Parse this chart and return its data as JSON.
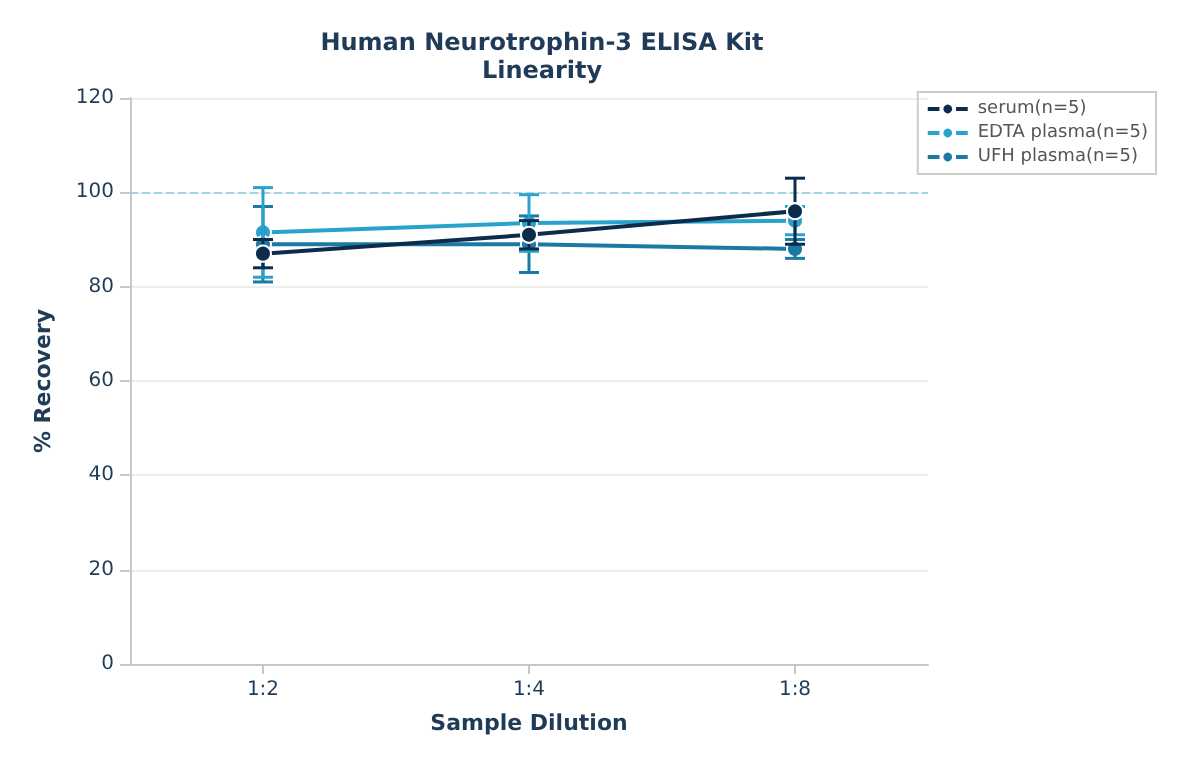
{
  "chart_data": {
    "type": "line",
    "title": "Human Neurotrophin-3 ELISA Kit",
    "subtitle": "Linearity",
    "xlabel": "Sample Dilution",
    "ylabel": "% Recovery",
    "categories": [
      "1:2",
      "1:4",
      "1:8"
    ],
    "series": [
      {
        "name": "serum(n=5)",
        "color": "#0d2b4a",
        "values": [
          87,
          91,
          96
        ],
        "errors": [
          3,
          3,
          7
        ]
      },
      {
        "name": "EDTA plasma(n=5)",
        "color": "#29a3cc",
        "values": [
          91.5,
          93.5,
          94
        ],
        "errors": [
          9.5,
          6,
          3
        ]
      },
      {
        "name": "UFH plasma(n=5)",
        "color": "#1a7aa3",
        "values": [
          89,
          89,
          88
        ],
        "errors": [
          8,
          6,
          2
        ]
      }
    ],
    "ylim": [
      0,
      120
    ],
    "yticks": [
      0,
      20,
      40,
      60,
      80,
      100,
      120
    ],
    "grid": "y",
    "legend": "top right",
    "marker": "circle",
    "line_style": "solid",
    "ref_lines": [
      {
        "axis": "y",
        "value": 100,
        "label": null,
        "color": "#9fd3e6",
        "line_style": "dashed"
      }
    ]
  }
}
